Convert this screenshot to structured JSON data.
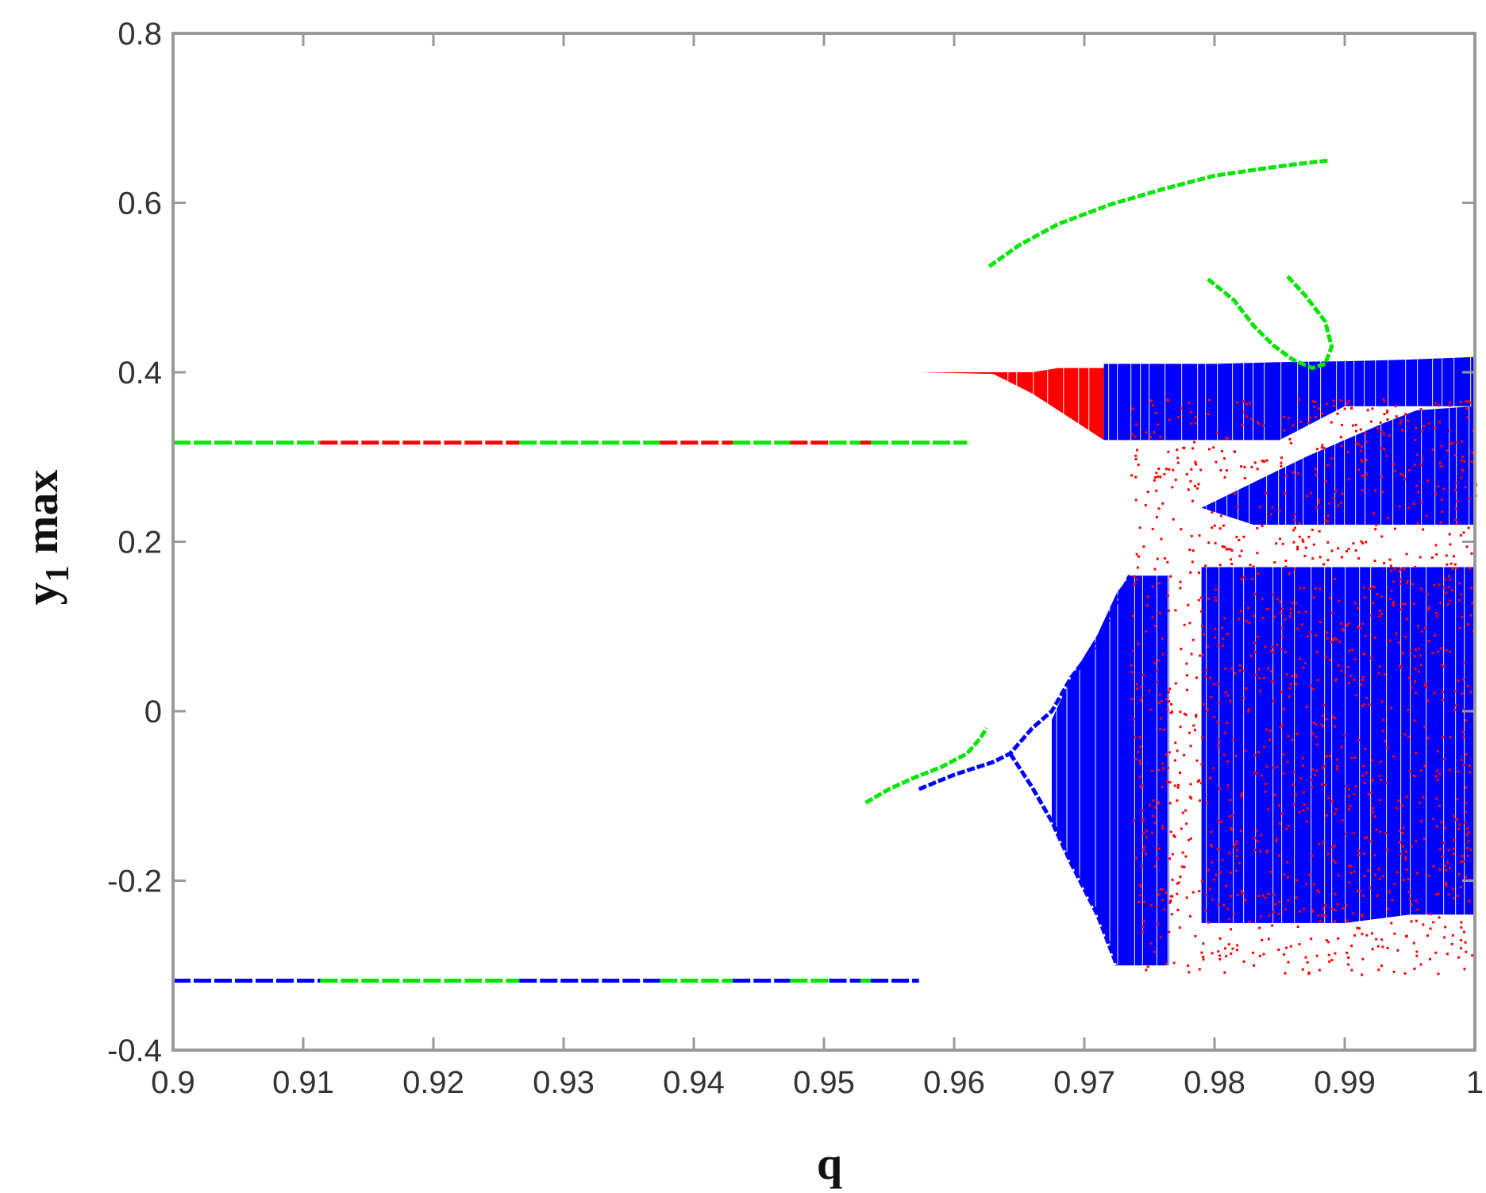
{
  "chart_data": {
    "type": "scatter",
    "title": "",
    "xlabel": "q",
    "ylabel": {
      "main": "y",
      "subscript": "1",
      "suffix": " max"
    },
    "xlim": [
      0.9,
      1.0
    ],
    "ylim": [
      -0.4,
      0.8
    ],
    "x_ticks": [
      0.9,
      0.91,
      0.92,
      0.93,
      0.94,
      0.95,
      0.96,
      0.97,
      0.98,
      0.99,
      1.0
    ],
    "x_tick_labels": [
      "0.9",
      "0.91",
      "0.92",
      "0.93",
      "0.94",
      "0.95",
      "0.96",
      "0.97",
      "0.98",
      "0.99",
      "1"
    ],
    "y_ticks": [
      -0.4,
      -0.2,
      0,
      0.2,
      0.4,
      0.6,
      0.8
    ],
    "y_tick_labels": [
      "-0.4",
      "-0.2",
      "0",
      "0.2",
      "0.4",
      "0.6",
      "0.8"
    ],
    "grid": false,
    "legend": "none",
    "colors": {
      "green": "#00e600",
      "red": "#ff0000",
      "blue": "#0000ff",
      "axes": "#999999"
    },
    "series": [
      {
        "color": "green",
        "kind": "segments",
        "note_visible": false,
        "segments": [
          {
            "x": [
              0.9,
              0.9113
            ],
            "y": 0.317
          },
          {
            "x": 0.9266,
            "x2": 0.9374,
            "y": 0.317
          },
          {
            "x": 0.943,
            "x2": 0.9474,
            "y": 0.317
          },
          {
            "x": 0.9504,
            "x2": 0.9528,
            "y": 0.317
          },
          {
            "x": 0.9536,
            "x2": 0.961,
            "y": 0.317
          },
          {
            "x": 0.9113,
            "x2": 0.9266,
            "y": -0.318
          },
          {
            "x": 0.9374,
            "x2": 0.943,
            "y": -0.318
          },
          {
            "x": 0.9474,
            "x2": 0.9504,
            "y": -0.318
          },
          {
            "x": 0.9528,
            "x2": 0.9536,
            "y": -0.318
          }
        ]
      },
      {
        "color": "red",
        "kind": "segments",
        "segments": [
          {
            "x": 0.9113,
            "x2": 0.9266,
            "y": 0.317
          },
          {
            "x": 0.9374,
            "x2": 0.943,
            "y": 0.317
          },
          {
            "x": 0.9474,
            "x2": 0.9504,
            "y": 0.317
          },
          {
            "x": 0.9528,
            "x2": 0.9536,
            "y": 0.317
          }
        ]
      },
      {
        "color": "blue",
        "kind": "segments",
        "segments": [
          {
            "x": 0.9,
            "x2": 0.9113,
            "y": -0.318
          },
          {
            "x": 0.9266,
            "x2": 0.9374,
            "y": -0.318
          },
          {
            "x": 0.943,
            "x2": 0.9474,
            "y": -0.318
          },
          {
            "x": 0.9504,
            "x2": 0.9528,
            "y": -0.318
          },
          {
            "x": 0.9536,
            "x2": 0.9573,
            "y": -0.318
          }
        ]
      },
      {
        "color": "green",
        "kind": "curve",
        "points": [
          [
            0.9627,
            0.525
          ],
          [
            0.965,
            0.55
          ],
          [
            0.968,
            0.575
          ],
          [
            0.972,
            0.598
          ],
          [
            0.976,
            0.616
          ],
          [
            0.98,
            0.632
          ],
          [
            0.984,
            0.641
          ],
          [
            0.9865,
            0.646
          ],
          [
            0.9888,
            0.65
          ]
        ]
      },
      {
        "color": "green",
        "kind": "curve",
        "points": [
          [
            0.9532,
            -0.108
          ],
          [
            0.955,
            -0.092
          ],
          [
            0.957,
            -0.078
          ],
          [
            0.959,
            -0.066
          ],
          [
            0.961,
            -0.05
          ],
          [
            0.962,
            -0.032
          ],
          [
            0.9625,
            -0.02
          ]
        ]
      },
      {
        "color": "green",
        "kind": "curve",
        "points": [
          [
            0.9795,
            0.51
          ],
          [
            0.9815,
            0.485
          ],
          [
            0.983,
            0.455
          ],
          [
            0.9845,
            0.432
          ],
          [
            0.986,
            0.415
          ],
          [
            0.9875,
            0.405
          ],
          [
            0.9885,
            0.41
          ],
          [
            0.989,
            0.43
          ],
          [
            0.9885,
            0.46
          ],
          [
            0.987,
            0.49
          ],
          [
            0.9855,
            0.515
          ]
        ]
      },
      {
        "color": "red",
        "kind": "band",
        "x": [
          0.9573,
          0.963,
          0.966,
          0.968,
          0.9695,
          0.9705,
          0.9715
        ],
        "y_top": [
          0.4,
          0.4,
          0.4,
          0.405,
          0.405,
          0.405,
          0.405
        ],
        "y_bottom": [
          0.4,
          0.398,
          0.375,
          0.355,
          0.34,
          0.33,
          0.32
        ]
      },
      {
        "color": "blue",
        "kind": "band",
        "x": [
          0.9715,
          0.975,
          0.98,
          0.985,
          0.99,
          0.995,
          1.0
        ],
        "y_top": [
          0.41,
          0.41,
          0.41,
          0.412,
          0.413,
          0.415,
          0.418
        ],
        "y_bottom": [
          0.32,
          0.32,
          0.32,
          0.32,
          0.36,
          0.36,
          0.36
        ]
      },
      {
        "color": "blue",
        "kind": "curve",
        "points": [
          [
            0.9573,
            -0.092
          ],
          [
            0.96,
            -0.075
          ],
          [
            0.963,
            -0.06
          ],
          [
            0.9643,
            -0.05
          ],
          [
            0.966,
            -0.02
          ],
          [
            0.9675,
            0.0
          ],
          [
            0.969,
            0.04
          ],
          [
            0.971,
            0.08
          ],
          [
            0.9725,
            0.13
          ],
          [
            0.9735,
            0.16
          ]
        ]
      },
      {
        "color": "blue",
        "kind": "curve",
        "points": [
          [
            0.9643,
            -0.05
          ],
          [
            0.966,
            -0.09
          ],
          [
            0.9675,
            -0.13
          ],
          [
            0.969,
            -0.18
          ],
          [
            0.971,
            -0.24
          ],
          [
            0.9725,
            -0.3
          ]
        ]
      },
      {
        "color": "blue",
        "kind": "band",
        "x": [
          0.9675,
          0.969,
          0.971,
          0.9725,
          0.9735
        ],
        "y_top": [
          -0.01,
          0.04,
          0.09,
          0.14,
          0.16
        ],
        "y_bottom": [
          -0.13,
          -0.18,
          -0.24,
          -0.3,
          -0.3
        ]
      },
      {
        "color": "blue",
        "kind": "band",
        "x": [
          0.9735,
          0.9765
        ],
        "y_top": [
          0.16,
          0.16
        ],
        "y_bottom": [
          -0.3,
          -0.3
        ]
      },
      {
        "color": "blue",
        "kind": "band",
        "x": [
          0.979,
          0.983,
          0.987,
          0.99,
          0.993,
          0.9955,
          1.0
        ],
        "y_top": [
          0.24,
          0.27,
          0.3,
          0.32,
          0.34,
          0.355,
          0.36
        ],
        "y_bottom": [
          0.24,
          0.22,
          0.22,
          0.22,
          0.22,
          0.22,
          0.22
        ]
      },
      {
        "color": "blue",
        "kind": "band",
        "x": [
          0.979,
          0.985,
          0.99,
          0.995,
          1.0
        ],
        "y_top": [
          0.17,
          0.17,
          0.17,
          0.17,
          0.17
        ],
        "y_bottom": [
          -0.25,
          -0.25,
          -0.25,
          -0.24,
          -0.24
        ]
      },
      {
        "color": "red",
        "kind": "scatter-region",
        "x_range": [
          0.9735,
          1.0
        ],
        "y_range": [
          -0.31,
          0.37
        ]
      }
    ]
  }
}
